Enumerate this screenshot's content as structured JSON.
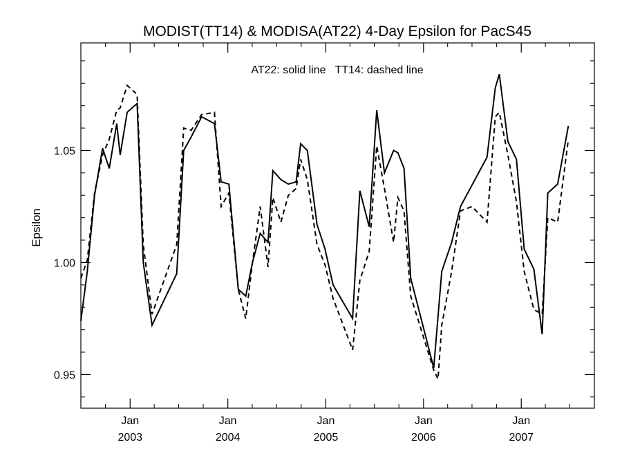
{
  "chart_data": {
    "type": "line",
    "title": "MODIST(TT14) & MODISA(AT22) 4-Day Epsilon for PacS45",
    "annotation": "AT22: solid line   TT14: dashed line",
    "xlabel": "",
    "ylabel": "Epsilon",
    "xlim": [
      "2002-07-01",
      "2007-10-01"
    ],
    "ylim": [
      0.935,
      1.098
    ],
    "y_ticks": [
      "0.95",
      "1.00",
      "1.05"
    ],
    "x_ticks": [
      {
        "date": "2003-01-01",
        "month": "Jan",
        "year": "2003"
      },
      {
        "date": "2004-01-01",
        "month": "Jan",
        "year": "2004"
      },
      {
        "date": "2005-01-01",
        "month": "Jan",
        "year": "2005"
      },
      {
        "date": "2006-01-01",
        "month": "Jan",
        "year": "2006"
      },
      {
        "date": "2007-01-01",
        "month": "Jan",
        "year": "2007"
      }
    ],
    "grid": false,
    "series": [
      {
        "name": "AT22",
        "style": "solid",
        "points": [
          [
            "2002-07-01",
            0.974
          ],
          [
            "2002-07-25",
            0.996
          ],
          [
            "2002-08-21",
            1.03
          ],
          [
            "2002-09-20",
            1.051
          ],
          [
            "2002-10-15",
            1.042
          ],
          [
            "2002-11-12",
            1.062
          ],
          [
            "2002-11-25",
            1.048
          ],
          [
            "2002-12-21",
            1.067
          ],
          [
            "2003-01-27",
            1.071
          ],
          [
            "2003-02-19",
            1.0
          ],
          [
            "2003-03-24",
            0.972
          ],
          [
            "2003-06-24",
            0.995
          ],
          [
            "2003-07-20",
            1.05
          ],
          [
            "2003-08-17",
            1.056
          ],
          [
            "2003-09-25",
            1.065
          ],
          [
            "2003-11-12",
            1.062
          ],
          [
            "2003-12-07",
            1.036
          ],
          [
            "2004-01-05",
            1.035
          ],
          [
            "2004-02-09",
            0.988
          ],
          [
            "2004-03-08",
            0.985
          ],
          [
            "2004-04-02",
            1.0
          ],
          [
            "2004-05-01",
            1.013
          ],
          [
            "2004-05-30",
            1.009
          ],
          [
            "2004-06-17",
            1.041
          ],
          [
            "2004-07-17",
            1.037
          ],
          [
            "2004-08-14",
            1.035
          ],
          [
            "2004-09-12",
            1.036
          ],
          [
            "2004-09-29",
            1.053
          ],
          [
            "2004-10-24",
            1.05
          ],
          [
            "2004-11-29",
            1.017
          ],
          [
            "2004-12-29",
            1.006
          ],
          [
            "2005-01-28",
            0.99
          ],
          [
            "2005-04-11",
            0.975
          ],
          [
            "2005-05-08",
            1.032
          ],
          [
            "2005-06-12",
            1.016
          ],
          [
            "2005-07-10",
            1.068
          ],
          [
            "2005-08-08",
            1.04
          ],
          [
            "2005-09-11",
            1.05
          ],
          [
            "2005-09-27",
            1.049
          ],
          [
            "2005-10-20",
            1.042
          ],
          [
            "2005-11-14",
            0.993
          ],
          [
            "2006-02-08",
            0.953
          ],
          [
            "2006-03-10",
            0.996
          ],
          [
            "2006-04-16",
            1.009
          ],
          [
            "2006-05-19",
            1.025
          ],
          [
            "2006-08-26",
            1.047
          ],
          [
            "2006-09-26",
            1.078
          ],
          [
            "2006-10-11",
            1.084
          ],
          [
            "2006-11-12",
            1.054
          ],
          [
            "2006-12-14",
            1.046
          ],
          [
            "2007-01-12",
            1.006
          ],
          [
            "2007-02-17",
            0.997
          ],
          [
            "2007-03-20",
            0.968
          ],
          [
            "2007-04-10",
            1.031
          ],
          [
            "2007-05-17",
            1.035
          ],
          [
            "2007-06-26",
            1.061
          ]
        ]
      },
      {
        "name": "TT14",
        "style": "dashed",
        "points": [
          [
            "2002-07-01",
            0.993
          ],
          [
            "2002-07-25",
            1.001
          ],
          [
            "2002-08-21",
            1.031
          ],
          [
            "2002-09-20",
            1.048
          ],
          [
            "2002-10-15",
            1.055
          ],
          [
            "2002-11-12",
            1.068
          ],
          [
            "2002-11-25",
            1.069
          ],
          [
            "2002-12-21",
            1.079
          ],
          [
            "2003-01-27",
            1.075
          ],
          [
            "2003-02-19",
            1.008
          ],
          [
            "2003-03-24",
            0.977
          ],
          [
            "2003-06-24",
            1.008
          ],
          [
            "2003-07-20",
            1.06
          ],
          [
            "2003-08-17",
            1.059
          ],
          [
            "2003-09-25",
            1.066
          ],
          [
            "2003-11-12",
            1.067
          ],
          [
            "2003-12-07",
            1.025
          ],
          [
            "2004-01-05",
            1.031
          ],
          [
            "2004-02-09",
            0.988
          ],
          [
            "2004-03-08",
            0.975
          ],
          [
            "2004-04-02",
            1.0
          ],
          [
            "2004-05-01",
            1.025
          ],
          [
            "2004-05-30",
            0.998
          ],
          [
            "2004-06-17",
            1.029
          ],
          [
            "2004-07-17",
            1.018
          ],
          [
            "2004-08-14",
            1.03
          ],
          [
            "2004-09-12",
            1.033
          ],
          [
            "2004-09-29",
            1.046
          ],
          [
            "2004-10-24",
            1.037
          ],
          [
            "2004-11-29",
            1.008
          ],
          [
            "2004-12-29",
            0.999
          ],
          [
            "2005-01-28",
            0.984
          ],
          [
            "2005-04-11",
            0.961
          ],
          [
            "2005-05-08",
            0.992
          ],
          [
            "2005-06-12",
            1.005
          ],
          [
            "2005-07-10",
            1.052
          ],
          [
            "2005-08-08",
            1.033
          ],
          [
            "2005-09-11",
            1.009
          ],
          [
            "2005-09-27",
            1.029
          ],
          [
            "2005-10-20",
            1.023
          ],
          [
            "2005-11-14",
            0.985
          ],
          [
            "2006-02-08",
            0.952
          ],
          [
            "2006-02-24",
            0.948
          ],
          [
            "2006-03-10",
            0.972
          ],
          [
            "2006-04-16",
            0.996
          ],
          [
            "2006-05-19",
            1.023
          ],
          [
            "2006-07-01",
            1.025
          ],
          [
            "2006-08-26",
            1.018
          ],
          [
            "2006-09-26",
            1.065
          ],
          [
            "2006-10-11",
            1.067
          ],
          [
            "2006-11-12",
            1.048
          ],
          [
            "2006-12-14",
            1.027
          ],
          [
            "2007-01-12",
            0.996
          ],
          [
            "2007-02-17",
            0.979
          ],
          [
            "2007-03-20",
            0.977
          ],
          [
            "2007-04-10",
            1.02
          ],
          [
            "2007-05-17",
            1.018
          ],
          [
            "2007-06-26",
            1.055
          ]
        ]
      }
    ]
  }
}
